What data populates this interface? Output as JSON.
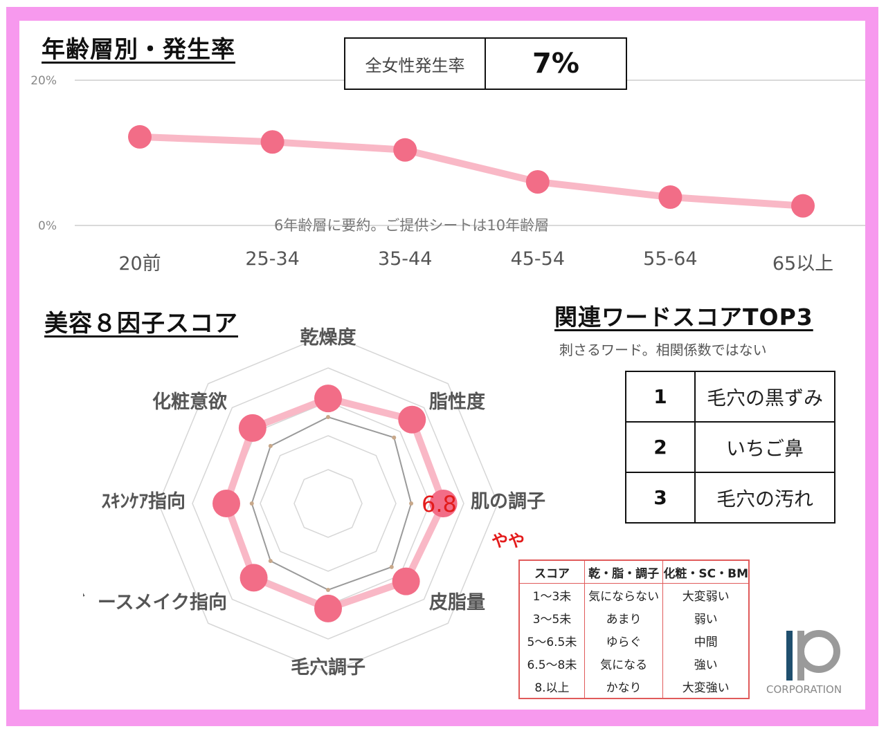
{
  "age_section": {
    "title": "年齢層別・発生率",
    "rate_label": "全女性発生率",
    "rate_value": "7%",
    "note": "6年齢層に要約。ご提供シートは10年齢層"
  },
  "beauty_section": {
    "title": "美容８因子スコア",
    "highlight_value": "6.8",
    "highlight_level": "やや"
  },
  "related_section": {
    "title": "関連ワードスコアTOP3",
    "subtitle": "刺さるワード。相関係数ではない",
    "rows": [
      {
        "rank": "1",
        "word": "毛穴の黒ずみ"
      },
      {
        "rank": "2",
        "word": "いちご鼻"
      },
      {
        "rank": "3",
        "word": "毛穴の汚れ"
      }
    ]
  },
  "legend_table": {
    "headers": [
      "スコア",
      "乾・脂・調子",
      "化粧・SC・BM"
    ],
    "rows": [
      [
        "1～3未",
        "気にならない",
        "大変弱い"
      ],
      [
        "3～5未",
        "あまり",
        "弱い"
      ],
      [
        "5～6.5未",
        "ゆらぐ",
        "中間"
      ],
      [
        "6.5～8未",
        "気になる",
        "強い"
      ],
      [
        "8.以上",
        "かなり",
        "大変強い"
      ]
    ]
  },
  "logo": {
    "text": "CORPORATION",
    "icon": "ip-logo-icon"
  },
  "colors": {
    "frame": "#f799ee",
    "line": "#f9b8c6",
    "marker": "#f26d87",
    "highlight": "#e31b1b",
    "table_border": "#e05a5a"
  },
  "chart_data": [
    {
      "type": "line",
      "categories": [
        "20前",
        "25-34",
        "35-44",
        "45-54",
        "55-64",
        "65以上"
      ],
      "values": [
        12.2,
        11.5,
        10.4,
        6.0,
        3.9,
        2.7
      ],
      "ylim": [
        0,
        20
      ],
      "yticks": [
        "0%",
        "20%"
      ],
      "grid": true
    },
    {
      "type": "radar",
      "axes": [
        "乾燥度",
        "脂性度",
        "肌の調子",
        "皮脂量",
        "毛穴調子",
        "ベ゛ースメイク指向",
        "ｽｷﾝｹｱ指向",
        "化粧意欲"
      ],
      "series": [
        {
          "values": [
            6.2,
            7.0,
            6.8,
            6.5,
            6.2,
            6.2,
            6.0,
            6.3
          ]
        },
        {
          "values": [
            5.1,
            5.5,
            4.9,
            5.3,
            5.1,
            4.8,
            4.5,
            4.8
          ]
        }
      ],
      "rlim": [
        0,
        10
      ]
    }
  ]
}
